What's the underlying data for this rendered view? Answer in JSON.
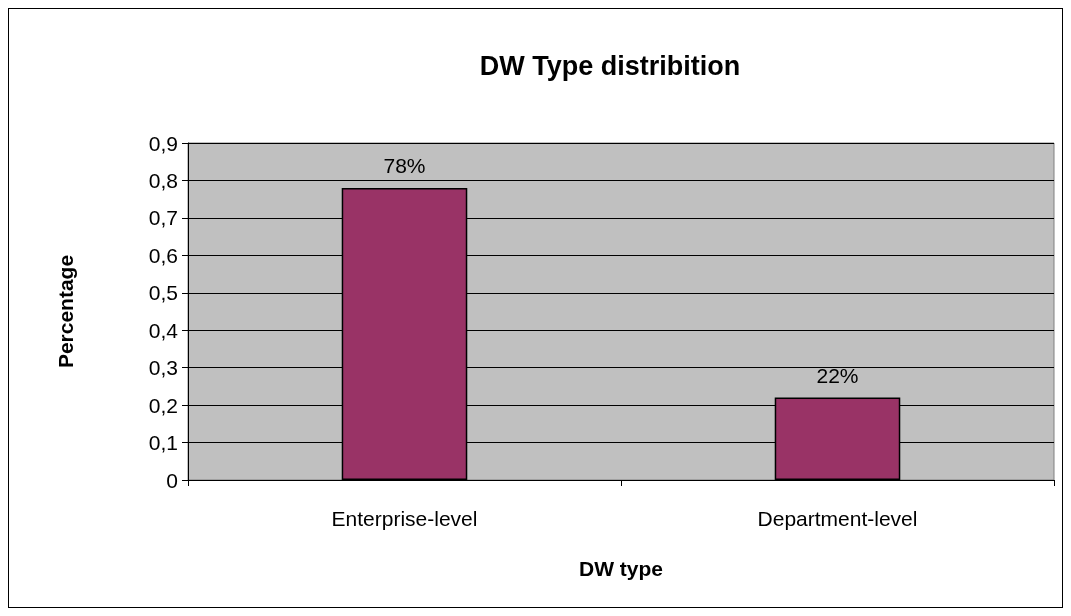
{
  "chart_data": {
    "type": "bar",
    "title": "DW Type distribition",
    "xlabel": "DW type",
    "ylabel": "Percentage",
    "categories": [
      "Enterprise-level",
      "Department-level"
    ],
    "values": [
      0.78,
      0.22
    ],
    "value_labels": [
      "78%",
      "22%"
    ],
    "color": "#993366",
    "ylim": [
      0,
      0.9
    ],
    "yticks": [
      0,
      {
        "value": 0.1,
        "label": "0,1"
      },
      {
        "value": 0.2,
        "label": "0,2"
      },
      {
        "value": 0.3,
        "label": "0,3"
      },
      {
        "value": 0.4,
        "label": "0,4"
      },
      {
        "value": 0.5,
        "label": "0,5"
      },
      {
        "value": 0.6,
        "label": "0,6"
      },
      {
        "value": 0.7,
        "label": "0,7"
      },
      {
        "value": 0.8,
        "label": "0,8"
      },
      {
        "value": 0.9,
        "label": "0,9"
      }
    ],
    "grid": "y"
  }
}
